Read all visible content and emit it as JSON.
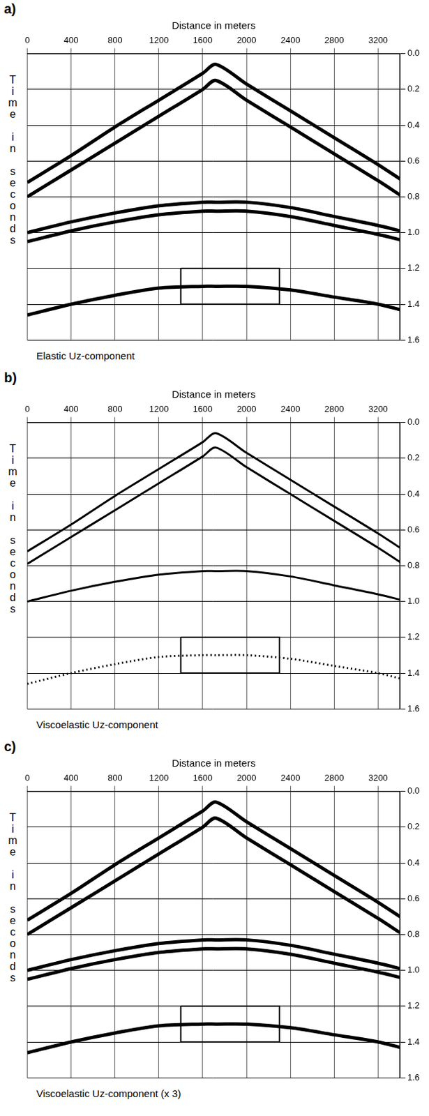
{
  "chart_data": [
    {
      "type": "line",
      "panel_label": "a)",
      "title": "Elastic Uz-component",
      "xlabel": "Distance in meters",
      "ylabel": "Time in seconds",
      "xlim": [
        0,
        3400
      ],
      "xticks": [
        0,
        400,
        800,
        1200,
        1600,
        2000,
        2400,
        2800,
        3200
      ],
      "ylim": [
        0,
        1.6
      ],
      "yticks": [
        {
          "value": 0,
          "label": "0.0"
        },
        0.2,
        0.4,
        0.6,
        0.8,
        {
          "value": 1,
          "label": "1.0"
        },
        1.2,
        1.4,
        1.6
      ],
      "grid": true,
      "x": [
        0,
        400,
        800,
        1200,
        1600,
        1720,
        2000,
        2400,
        2800,
        3200,
        3400
      ],
      "series": [
        {
          "color": "#000000",
          "line_style": "solid",
          "values": [
            0.72,
            0.57,
            0.41,
            0.26,
            0.11,
            0.06,
            0.17,
            0.32,
            0.47,
            0.62,
            0.7
          ]
        },
        {
          "color": "#000000",
          "line_style": "solid",
          "values": [
            0.8,
            0.65,
            0.5,
            0.35,
            0.2,
            0.15,
            0.26,
            0.41,
            0.56,
            0.71,
            0.79
          ]
        },
        {
          "color": "#000000",
          "line_style": "solid",
          "values": [
            1.0,
            0.94,
            0.89,
            0.85,
            0.83,
            0.83,
            0.83,
            0.86,
            0.91,
            0.96,
            0.99
          ]
        },
        {
          "color": "#000000",
          "line_style": "solid",
          "values": [
            1.05,
            0.99,
            0.94,
            0.9,
            0.88,
            0.88,
            0.88,
            0.91,
            0.96,
            1.01,
            1.04
          ]
        },
        {
          "color": "#000000",
          "line_style": "solid",
          "values": [
            1.46,
            1.4,
            1.35,
            1.31,
            1.3,
            1.3,
            1.3,
            1.32,
            1.36,
            1.4,
            1.43
          ]
        }
      ],
      "box": {
        "x": [
          1400,
          2300
        ],
        "y": [
          1.2,
          1.4
        ]
      }
    },
    {
      "type": "line",
      "panel_label": "b)",
      "title": "Viscoelastic Uz-component",
      "xlabel": "Distance in meters",
      "ylabel": "Time in seconds",
      "xlim": [
        0,
        3400
      ],
      "xticks": [
        0,
        400,
        800,
        1200,
        1600,
        2000,
        2400,
        2800,
        3200
      ],
      "ylim": [
        0,
        1.6
      ],
      "yticks": [
        {
          "value": 0,
          "label": "0.0"
        },
        0.2,
        0.4,
        0.6,
        0.8,
        {
          "value": 1,
          "label": "1.0"
        },
        1.2,
        1.4,
        1.6
      ],
      "grid": true,
      "x": [
        0,
        400,
        800,
        1200,
        1600,
        1720,
        2000,
        2400,
        2800,
        3200,
        3400
      ],
      "series": [
        {
          "color": "#000000",
          "line_style": "solid",
          "values": [
            0.72,
            0.57,
            0.41,
            0.26,
            0.11,
            0.06,
            0.17,
            0.32,
            0.47,
            0.62,
            0.7
          ]
        },
        {
          "color": "#000000",
          "line_style": "solid",
          "values": [
            0.79,
            0.64,
            0.49,
            0.34,
            0.19,
            0.14,
            0.25,
            0.4,
            0.55,
            0.7,
            0.78
          ]
        },
        {
          "color": "#000000",
          "line_style": "solid",
          "values": [
            1.0,
            0.94,
            0.89,
            0.85,
            0.83,
            0.83,
            0.83,
            0.86,
            0.91,
            0.96,
            0.99
          ]
        },
        {
          "color": "#000000",
          "line_style": "dotted",
          "values": [
            1.46,
            1.4,
            1.35,
            1.31,
            1.3,
            1.3,
            1.3,
            1.32,
            1.36,
            1.4,
            1.43
          ]
        }
      ],
      "box": {
        "x": [
          1400,
          2300
        ],
        "y": [
          1.2,
          1.4
        ]
      }
    },
    {
      "type": "line",
      "panel_label": "c)",
      "title": "Viscoelastic Uz-component (x 3)",
      "xlabel": "Distance in meters",
      "ylabel": "Time in seconds",
      "xlim": [
        0,
        3400
      ],
      "xticks": [
        0,
        400,
        800,
        1200,
        1600,
        2000,
        2400,
        2800,
        3200
      ],
      "ylim": [
        0,
        1.6
      ],
      "yticks": [
        {
          "value": 0,
          "label": "0.0"
        },
        0.2,
        0.4,
        0.6,
        0.8,
        {
          "value": 1,
          "label": "1.0"
        },
        1.2,
        1.4,
        1.6
      ],
      "grid": true,
      "x": [
        0,
        400,
        800,
        1200,
        1600,
        1720,
        2000,
        2400,
        2800,
        3200,
        3400
      ],
      "series": [
        {
          "color": "#000000",
          "line_style": "solid",
          "values": [
            0.72,
            0.57,
            0.41,
            0.26,
            0.11,
            0.06,
            0.17,
            0.32,
            0.47,
            0.62,
            0.7
          ]
        },
        {
          "color": "#000000",
          "line_style": "solid",
          "values": [
            0.8,
            0.65,
            0.5,
            0.35,
            0.2,
            0.15,
            0.26,
            0.41,
            0.56,
            0.71,
            0.79
          ]
        },
        {
          "color": "#000000",
          "line_style": "solid",
          "values": [
            1.0,
            0.94,
            0.89,
            0.85,
            0.83,
            0.83,
            0.83,
            0.86,
            0.91,
            0.96,
            0.99
          ]
        },
        {
          "color": "#000000",
          "line_style": "solid",
          "values": [
            1.05,
            0.99,
            0.94,
            0.9,
            0.88,
            0.88,
            0.88,
            0.91,
            0.96,
            1.01,
            1.04
          ]
        },
        {
          "color": "#000000",
          "line_style": "solid",
          "values": [
            1.46,
            1.4,
            1.35,
            1.31,
            1.3,
            1.3,
            1.3,
            1.32,
            1.36,
            1.4,
            1.43
          ]
        }
      ],
      "box": {
        "x": [
          1400,
          2300
        ],
        "y": [
          1.2,
          1.4
        ]
      }
    }
  ]
}
